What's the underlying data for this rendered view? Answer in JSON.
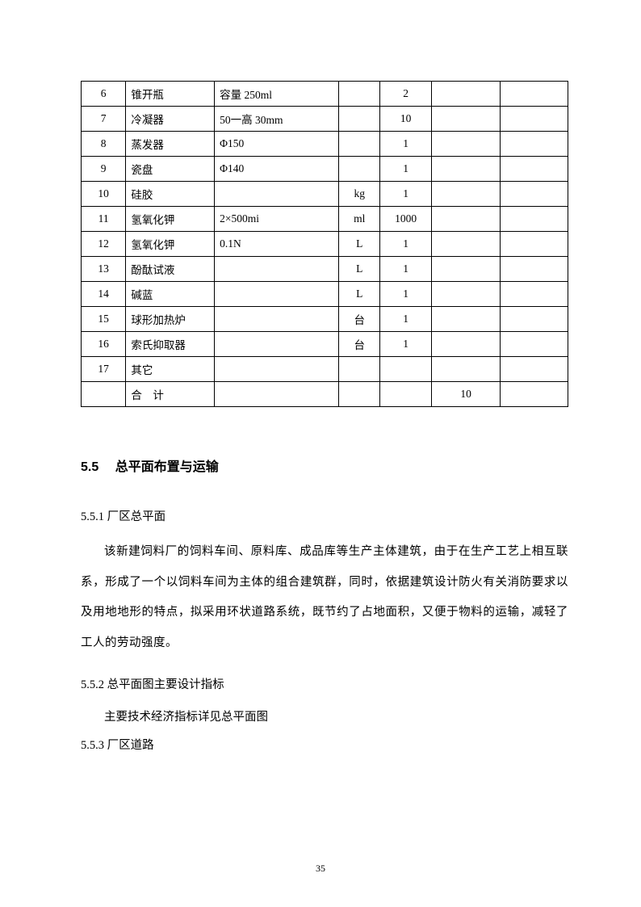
{
  "table": {
    "rows": [
      {
        "num": "6",
        "name": "锥开瓶",
        "spec": "容量 250ml",
        "unit": "",
        "qty": "2",
        "val": "",
        "remark": ""
      },
      {
        "num": "7",
        "name": "冷凝器",
        "spec": "50一高 30mm",
        "unit": "",
        "qty": "10",
        "val": "",
        "remark": ""
      },
      {
        "num": "8",
        "name": "蒸发器",
        "spec": "Φ150",
        "unit": "",
        "qty": "1",
        "val": "",
        "remark": ""
      },
      {
        "num": "9",
        "name": "瓷盘",
        "spec": "Φ140",
        "unit": "",
        "qty": "1",
        "val": "",
        "remark": ""
      },
      {
        "num": "10",
        "name": "硅胶",
        "spec": "",
        "unit": "kg",
        "qty": "1",
        "val": "",
        "remark": ""
      },
      {
        "num": "11",
        "name": "氢氧化钾",
        "spec": "2×500mi",
        "unit": "ml",
        "qty": "1000",
        "val": "",
        "remark": ""
      },
      {
        "num": "12",
        "name": "氢氧化钾",
        "spec": "0.1N",
        "unit": "L",
        "qty": "1",
        "val": "",
        "remark": ""
      },
      {
        "num": "13",
        "name": "酚酞试液",
        "spec": "",
        "unit": "L",
        "qty": "1",
        "val": "",
        "remark": ""
      },
      {
        "num": "14",
        "name": "碱蓝",
        "spec": "",
        "unit": "L",
        "qty": "1",
        "val": "",
        "remark": ""
      },
      {
        "num": "15",
        "name": "球形加热炉",
        "spec": "",
        "unit": "台",
        "qty": "1",
        "val": "",
        "remark": ""
      },
      {
        "num": "16",
        "name": "索氏抑取器",
        "spec": "",
        "unit": "台",
        "qty": "1",
        "val": "",
        "remark": ""
      },
      {
        "num": "17",
        "name": "其它",
        "spec": "",
        "unit": "",
        "qty": "",
        "val": "",
        "remark": ""
      },
      {
        "num": "",
        "name": "合　计",
        "spec": "",
        "unit": "",
        "qty": "",
        "val": "10",
        "remark": ""
      }
    ]
  },
  "section": {
    "num": "5.5",
    "title": "总平面布置与运输"
  },
  "sub1": {
    "num": "5.5.1",
    "title": "厂区总平面",
    "para": "该新建饲料厂的饲料车间、原料库、成品库等生产主体建筑，由于在生产工艺上相互联系，形成了一个以饲料车间为主体的组合建筑群，同时，依据建筑设计防火有关消防要求以及用地地形的特点，拟采用环状道路系统，既节约了占地面积，又便于物料的运输，减轻了工人的劳动强度。"
  },
  "sub2": {
    "num": "5.5.2",
    "title": "总平面图主要设计指标",
    "para": "主要技术经济指标详见总平面图"
  },
  "sub3": {
    "num": "5.5.3",
    "title": "厂区道路"
  },
  "pageNumber": "35"
}
